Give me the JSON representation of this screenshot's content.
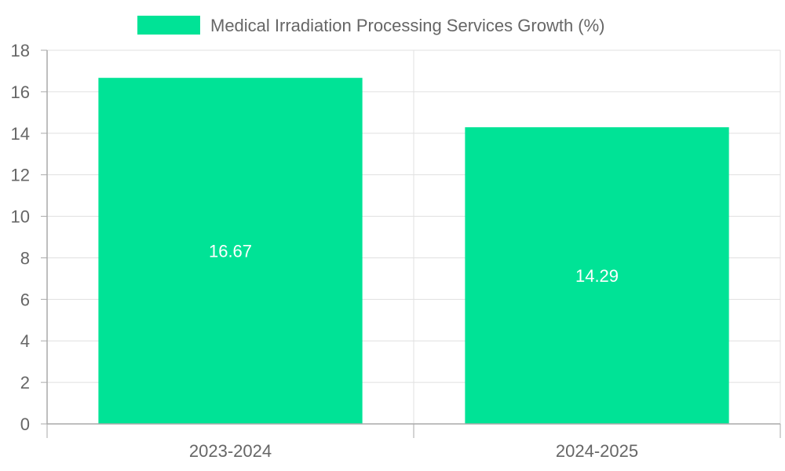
{
  "chart_data": {
    "type": "bar",
    "title": "",
    "xlabel": "",
    "ylabel": "",
    "categories": [
      "2023-2024",
      "2024-2025"
    ],
    "series": [
      {
        "name": "Medical Irradiation Processing Services Growth (%)",
        "values": [
          16.67,
          14.29
        ]
      }
    ],
    "data_labels": [
      "16.67",
      "14.29"
    ],
    "ylim": [
      0,
      18
    ],
    "yticks": [
      0,
      2,
      4,
      6,
      8,
      10,
      12,
      14,
      16,
      18
    ],
    "ytick_labels": [
      "0",
      "2",
      "4",
      "6",
      "8",
      "10",
      "12",
      "14",
      "16",
      "18"
    ],
    "grid": true,
    "legend_position": "top-center"
  },
  "colors": {
    "bar": "#00e396",
    "grid": "#e0e0e0",
    "axis": "#aaaaaa",
    "text": "#666666",
    "data_label": "#ffffff"
  }
}
